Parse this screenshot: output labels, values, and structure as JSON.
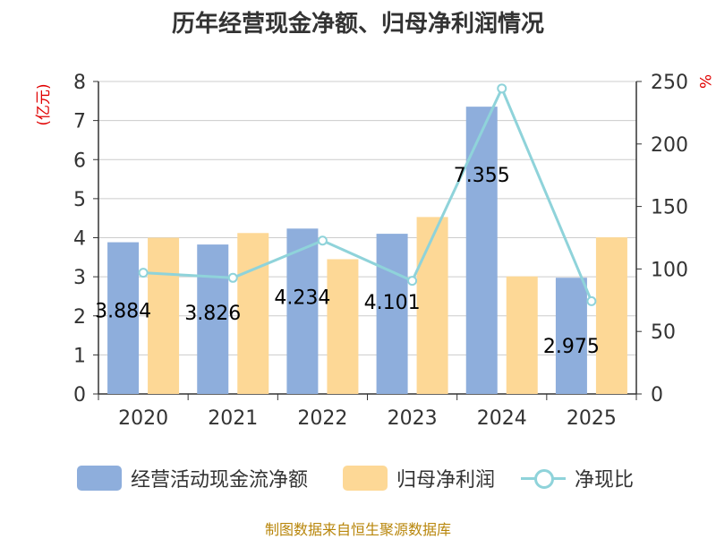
{
  "chart_data": {
    "type": "bar",
    "title": "历年经营现金净额、归母净利润情况",
    "categories": [
      "2020",
      "2021",
      "2022",
      "2023",
      "2024",
      "2025"
    ],
    "y_left_unit": "(亿元)",
    "y_right_unit": "%",
    "ylim_left": [
      0,
      8
    ],
    "ylim_right": [
      0,
      250
    ],
    "yticks_left": [
      "0",
      "1",
      "2",
      "3",
      "4",
      "5",
      "6",
      "7",
      "8"
    ],
    "yticks_right": [
      "0",
      "50",
      "100",
      "150",
      "200",
      "250"
    ],
    "grid": true,
    "legend_position": "bottom",
    "series": [
      {
        "name": "经营活动现金流净额",
        "type": "bar",
        "axis": "left",
        "color": "#8eaedc",
        "values": [
          3.884,
          3.826,
          4.234,
          4.101,
          7.355,
          2.975
        ],
        "labels": [
          "3.884",
          "3.826",
          "4.234",
          "4.101",
          "7.355",
          "2.975"
        ]
      },
      {
        "name": "归母净利润",
        "type": "bar",
        "axis": "left",
        "color": "#fdd896",
        "values": [
          4.0,
          4.12,
          3.45,
          4.53,
          3.01,
          4.01
        ]
      },
      {
        "name": "净现比",
        "type": "line",
        "axis": "right",
        "color": "#8fd3da",
        "values": [
          97,
          92.9,
          122.7,
          90.5,
          244.4,
          74.2
        ]
      }
    ],
    "footer": "制图数据来自恒生聚源数据库"
  }
}
